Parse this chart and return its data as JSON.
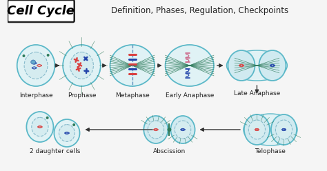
{
  "title_box_text": "Cell Cycle",
  "subtitle_text": "Definition, Phases, Regulation, Checkpoints",
  "bg_color": "#f5f5f5",
  "cell_outline_color": "#5bb8c8",
  "cell_fill_color": "#e0f2f5",
  "chromosome_red": "#d94040",
  "chromosome_blue": "#2244aa",
  "chromosome_pink": "#cc6688",
  "spindle_color": "#2d7a5a",
  "nuclear_fill": "#d5ecf0",
  "nuclear_edge": "#88bbcc",
  "row1_labels": [
    "Interphase",
    "Prophase",
    "Metaphase",
    "Early Anaphase",
    "Late Anaphase"
  ],
  "row2_labels": [
    "2 daughter cells",
    "Abscission",
    "Telophase"
  ],
  "label_fontsize": 6.5,
  "title_fontsize": 13,
  "subtitle_fontsize": 8.5
}
